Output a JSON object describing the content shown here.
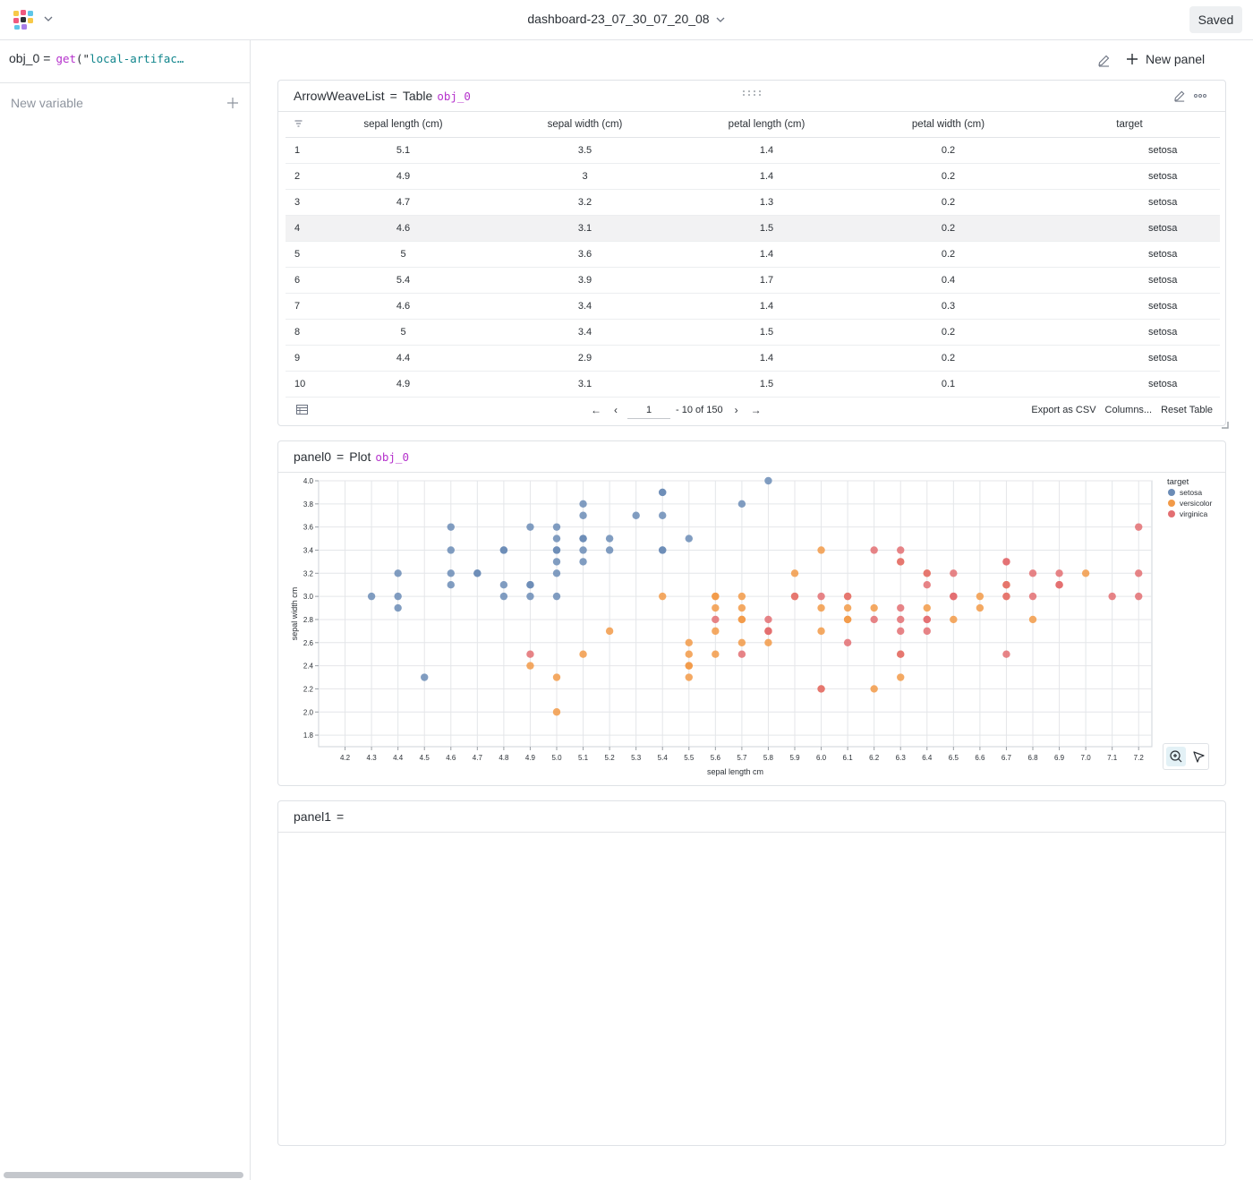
{
  "topbar": {
    "dashboard_title": "dashboard-23_07_30_07_20_08",
    "saved_label": "Saved"
  },
  "sidebar": {
    "variable": {
      "name": "obj_0",
      "eq": "=",
      "fn": "get",
      "paren": "(\"",
      "arg": "local-artifac…"
    },
    "new_variable_label": "New variable"
  },
  "toolbar": {
    "new_panel_label": "New panel"
  },
  "table_panel": {
    "name": "ArrowWeaveList",
    "eq": "=",
    "type": "Table",
    "var": "obj_0",
    "columns": [
      "sepal length (cm)",
      "sepal width (cm)",
      "petal length (cm)",
      "petal width (cm)",
      "target"
    ],
    "rows": [
      [
        "1",
        "5.1",
        "3.5",
        "1.4",
        "0.2",
        "setosa"
      ],
      [
        "2",
        "4.9",
        "3",
        "1.4",
        "0.2",
        "setosa"
      ],
      [
        "3",
        "4.7",
        "3.2",
        "1.3",
        "0.2",
        "setosa"
      ],
      [
        "4",
        "4.6",
        "3.1",
        "1.5",
        "0.2",
        "setosa"
      ],
      [
        "5",
        "5",
        "3.6",
        "1.4",
        "0.2",
        "setosa"
      ],
      [
        "6",
        "5.4",
        "3.9",
        "1.7",
        "0.4",
        "setosa"
      ],
      [
        "7",
        "4.6",
        "3.4",
        "1.4",
        "0.3",
        "setosa"
      ],
      [
        "8",
        "5",
        "3.4",
        "1.5",
        "0.2",
        "setosa"
      ],
      [
        "9",
        "4.4",
        "2.9",
        "1.4",
        "0.2",
        "setosa"
      ],
      [
        "10",
        "4.9",
        "3.1",
        "1.5",
        "0.1",
        "setosa"
      ]
    ],
    "highlighted_row": 4,
    "pager": {
      "page": "1",
      "range_text": "- 10 of 150"
    },
    "export_label": "Export as CSV",
    "columns_label": "Columns...",
    "reset_label": "Reset Table"
  },
  "plot_panel": {
    "name": "panel0",
    "eq": "=",
    "type": "Plot",
    "var": "obj_0"
  },
  "empty_panel": {
    "name": "panel1",
    "eq": "="
  },
  "chart_data": {
    "type": "scatter",
    "title": "",
    "xlabel": "sepal length cm",
    "ylabel": "sepal width cm",
    "xlim": [
      4.1,
      7.25
    ],
    "ylim": [
      1.7,
      4.0
    ],
    "x_ticks": [
      "4.2",
      "4.3",
      "4.4",
      "4.5",
      "4.6",
      "4.7",
      "4.8",
      "4.9",
      "5.0",
      "5.1",
      "5.2",
      "5.3",
      "5.4",
      "5.5",
      "5.6",
      "5.7",
      "5.8",
      "5.9",
      "6.0",
      "6.1",
      "6.2",
      "6.3",
      "6.4",
      "6.5",
      "6.6",
      "6.7",
      "6.8",
      "6.9",
      "7.0",
      "7.1",
      "7.2"
    ],
    "y_ticks": [
      "1.8",
      "2.0",
      "2.2",
      "2.4",
      "2.6",
      "2.8",
      "3.0",
      "3.2",
      "3.4",
      "3.6",
      "3.8",
      "4.0"
    ],
    "grid": true,
    "legend_title": "target",
    "legend_position": "top-right",
    "series": [
      {
        "name": "setosa",
        "color": "#6b8cb6",
        "points": [
          [
            5.1,
            3.5
          ],
          [
            4.9,
            3.0
          ],
          [
            4.7,
            3.2
          ],
          [
            4.6,
            3.1
          ],
          [
            5.0,
            3.6
          ],
          [
            5.4,
            3.9
          ],
          [
            4.6,
            3.4
          ],
          [
            5.0,
            3.4
          ],
          [
            4.4,
            2.9
          ],
          [
            4.9,
            3.1
          ],
          [
            5.4,
            3.7
          ],
          [
            4.8,
            3.4
          ],
          [
            4.8,
            3.0
          ],
          [
            4.3,
            3.0
          ],
          [
            5.8,
            4.0
          ],
          [
            5.7,
            3.8
          ],
          [
            5.1,
            3.8
          ],
          [
            5.1,
            3.7
          ],
          [
            5.1,
            3.3
          ],
          [
            4.8,
            3.1
          ],
          [
            5.0,
            3.0
          ],
          [
            5.0,
            3.2
          ],
          [
            5.2,
            3.5
          ],
          [
            5.2,
            3.4
          ],
          [
            4.7,
            3.2
          ],
          [
            5.4,
            3.4
          ],
          [
            5.5,
            3.5
          ],
          [
            4.9,
            3.6
          ],
          [
            4.4,
            3.0
          ],
          [
            4.4,
            3.2
          ],
          [
            5.0,
            3.5
          ],
          [
            4.5,
            2.3
          ],
          [
            5.3,
            3.7
          ],
          [
            5.0,
            3.3
          ],
          [
            4.6,
            3.2
          ],
          [
            4.6,
            3.6
          ],
          [
            5.1,
            3.4
          ],
          [
            4.9,
            3.1
          ],
          [
            5.4,
            3.4
          ],
          [
            5.1,
            3.5
          ],
          [
            4.8,
            3.4
          ],
          [
            5.4,
            3.9
          ],
          [
            5.0,
            3.4
          ]
        ]
      },
      {
        "name": "versicolor",
        "color": "#f29a48",
        "points": [
          [
            7.0,
            3.2
          ],
          [
            6.4,
            3.2
          ],
          [
            6.9,
            3.1
          ],
          [
            5.5,
            2.3
          ],
          [
            6.5,
            2.8
          ],
          [
            5.7,
            2.8
          ],
          [
            6.3,
            3.3
          ],
          [
            4.9,
            2.4
          ],
          [
            6.6,
            2.9
          ],
          [
            5.2,
            2.7
          ],
          [
            5.0,
            2.0
          ],
          [
            5.9,
            3.0
          ],
          [
            6.0,
            2.2
          ],
          [
            6.1,
            2.9
          ],
          [
            5.6,
            2.9
          ],
          [
            6.7,
            3.1
          ],
          [
            5.6,
            3.0
          ],
          [
            5.8,
            2.7
          ],
          [
            6.2,
            2.2
          ],
          [
            5.6,
            2.5
          ],
          [
            5.9,
            3.2
          ],
          [
            6.1,
            2.8
          ],
          [
            6.3,
            2.5
          ],
          [
            6.4,
            2.9
          ],
          [
            6.6,
            3.0
          ],
          [
            6.8,
            2.8
          ],
          [
            6.7,
            3.0
          ],
          [
            6.0,
            2.9
          ],
          [
            5.7,
            2.6
          ],
          [
            5.5,
            2.4
          ],
          [
            5.5,
            2.4
          ],
          [
            5.8,
            2.7
          ],
          [
            6.0,
            2.7
          ],
          [
            5.4,
            3.0
          ],
          [
            6.0,
            3.4
          ],
          [
            6.7,
            3.1
          ],
          [
            6.3,
            2.3
          ],
          [
            5.6,
            3.0
          ],
          [
            5.5,
            2.5
          ],
          [
            5.5,
            2.6
          ],
          [
            6.1,
            3.0
          ],
          [
            5.8,
            2.6
          ],
          [
            5.0,
            2.3
          ],
          [
            5.6,
            2.7
          ],
          [
            5.7,
            3.0
          ],
          [
            5.7,
            2.9
          ],
          [
            6.2,
            2.9
          ],
          [
            5.1,
            2.5
          ],
          [
            5.7,
            2.8
          ],
          [
            6.1,
            2.8
          ]
        ]
      },
      {
        "name": "virginica",
        "color": "#e36f72",
        "points": [
          [
            6.3,
            3.3
          ],
          [
            5.8,
            2.7
          ],
          [
            7.1,
            3.0
          ],
          [
            6.3,
            2.9
          ],
          [
            6.5,
            3.0
          ],
          [
            4.9,
            2.5
          ],
          [
            6.7,
            2.5
          ],
          [
            7.2,
            3.6
          ],
          [
            6.5,
            3.2
          ],
          [
            6.4,
            2.7
          ],
          [
            6.8,
            3.0
          ],
          [
            5.7,
            2.5
          ],
          [
            5.8,
            2.8
          ],
          [
            6.4,
            3.2
          ],
          [
            6.5,
            3.0
          ],
          [
            6.0,
            2.2
          ],
          [
            6.9,
            3.2
          ],
          [
            5.6,
            2.8
          ],
          [
            6.3,
            2.7
          ],
          [
            6.7,
            3.3
          ],
          [
            7.2,
            3.2
          ],
          [
            6.2,
            2.8
          ],
          [
            6.1,
            3.0
          ],
          [
            6.4,
            2.8
          ],
          [
            7.2,
            3.0
          ],
          [
            6.4,
            2.8
          ],
          [
            6.3,
            2.8
          ],
          [
            6.1,
            2.6
          ],
          [
            6.3,
            3.4
          ],
          [
            6.4,
            3.1
          ],
          [
            6.0,
            3.0
          ],
          [
            6.9,
            3.1
          ],
          [
            6.7,
            3.1
          ],
          [
            6.9,
            3.1
          ],
          [
            5.8,
            2.7
          ],
          [
            6.8,
            3.2
          ],
          [
            6.7,
            3.3
          ],
          [
            6.7,
            3.0
          ],
          [
            6.3,
            2.5
          ],
          [
            6.5,
            3.0
          ],
          [
            6.2,
            3.4
          ],
          [
            5.9,
            3.0
          ]
        ]
      }
    ]
  }
}
